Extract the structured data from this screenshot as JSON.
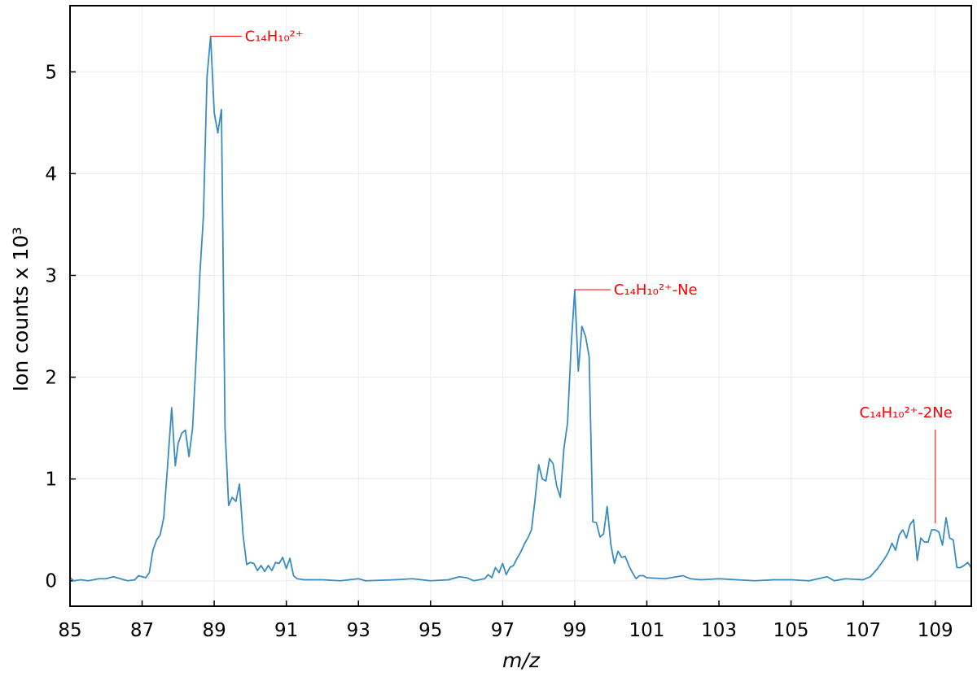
{
  "chart_data": {
    "type": "line",
    "xlabel": "m/z",
    "ylabel": "Ion counts x 10³",
    "color": "#3a8cc0",
    "grid": true,
    "xlim": [
      85,
      110
    ],
    "ylim": [
      -0.25,
      5.65
    ],
    "xticks": [
      85,
      87,
      89,
      91,
      93,
      95,
      97,
      99,
      101,
      103,
      105,
      107,
      109
    ],
    "yticks": [
      0,
      1,
      2,
      3,
      4,
      5
    ],
    "x": [
      85.0,
      85.1,
      85.3,
      85.5,
      85.8,
      86.0,
      86.2,
      86.4,
      86.6,
      86.8,
      86.9,
      87.1,
      87.2,
      87.3,
      87.4,
      87.5,
      87.6,
      87.7,
      87.82,
      87.92,
      88.0,
      88.1,
      88.2,
      88.3,
      88.4,
      88.5,
      88.6,
      88.7,
      88.8,
      88.9,
      89.0,
      89.1,
      89.2,
      89.3,
      89.4,
      89.5,
      89.6,
      89.7,
      89.8,
      89.9,
      90.0,
      90.1,
      90.2,
      90.3,
      90.4,
      90.5,
      90.6,
      90.7,
      90.8,
      90.9,
      91.0,
      91.1,
      91.2,
      91.3,
      91.5,
      92.0,
      92.5,
      93.0,
      93.2,
      94.0,
      94.5,
      95.0,
      95.5,
      95.8,
      96.0,
      96.2,
      96.5,
      96.6,
      96.7,
      96.8,
      96.9,
      97.0,
      97.1,
      97.2,
      97.3,
      97.4,
      97.5,
      97.6,
      97.7,
      97.8,
      97.9,
      98.0,
      98.1,
      98.2,
      98.3,
      98.4,
      98.5,
      98.6,
      98.7,
      98.8,
      98.9,
      99.0,
      99.1,
      99.2,
      99.3,
      99.4,
      99.5,
      99.6,
      99.7,
      99.8,
      99.9,
      100.0,
      100.1,
      100.2,
      100.3,
      100.4,
      100.5,
      100.6,
      100.7,
      100.8,
      100.9,
      101.0,
      101.5,
      102.0,
      102.2,
      102.5,
      103.0,
      103.5,
      104.0,
      104.5,
      105.0,
      105.5,
      106.0,
      106.2,
      106.5,
      107.0,
      107.2,
      107.4,
      107.6,
      107.7,
      107.8,
      107.9,
      108.0,
      108.1,
      108.2,
      108.3,
      108.4,
      108.5,
      108.6,
      108.7,
      108.8,
      108.9,
      109.0,
      109.1,
      109.2,
      109.3,
      109.4,
      109.5,
      109.6,
      109.7,
      109.8,
      109.9,
      110.0
    ],
    "values": [
      0.03,
      0.0,
      0.01,
      0.0,
      0.02,
      0.02,
      0.04,
      0.02,
      0.0,
      0.01,
      0.05,
      0.03,
      0.08,
      0.3,
      0.4,
      0.45,
      0.62,
      1.1,
      1.7,
      1.13,
      1.35,
      1.45,
      1.48,
      1.22,
      1.5,
      2.2,
      3.0,
      3.58,
      4.95,
      5.35,
      4.6,
      4.4,
      4.63,
      1.5,
      0.74,
      0.82,
      0.78,
      0.95,
      0.45,
      0.16,
      0.18,
      0.17,
      0.1,
      0.15,
      0.09,
      0.15,
      0.1,
      0.18,
      0.17,
      0.23,
      0.12,
      0.22,
      0.05,
      0.02,
      0.01,
      0.01,
      0.0,
      0.02,
      0.0,
      0.01,
      0.02,
      0.0,
      0.01,
      0.04,
      0.03,
      0.0,
      0.02,
      0.06,
      0.03,
      0.13,
      0.08,
      0.17,
      0.06,
      0.13,
      0.15,
      0.22,
      0.28,
      0.36,
      0.42,
      0.5,
      0.8,
      1.14,
      1.0,
      0.98,
      1.2,
      1.15,
      0.93,
      0.82,
      1.3,
      1.55,
      2.3,
      2.86,
      2.06,
      2.5,
      2.4,
      2.2,
      0.58,
      0.57,
      0.43,
      0.46,
      0.73,
      0.36,
      0.17,
      0.29,
      0.23,
      0.24,
      0.15,
      0.08,
      0.02,
      0.05,
      0.05,
      0.03,
      0.02,
      0.05,
      0.02,
      0.01,
      0.02,
      0.01,
      0.0,
      0.01,
      0.01,
      0.0,
      0.04,
      0.0,
      0.02,
      0.01,
      0.04,
      0.12,
      0.22,
      0.28,
      0.37,
      0.3,
      0.45,
      0.5,
      0.42,
      0.55,
      0.6,
      0.2,
      0.42,
      0.38,
      0.38,
      0.5,
      0.5,
      0.48,
      0.35,
      0.62,
      0.42,
      0.4,
      0.13,
      0.13,
      0.15,
      0.18,
      0.13
    ],
    "annotations": [
      {
        "text": "C₁₄H₁₀²⁺"
      },
      {
        "text": "C₁₄H₁₀²⁺-Ne"
      },
      {
        "text": "C₁₄H₁₀²⁺-2Ne"
      }
    ]
  }
}
